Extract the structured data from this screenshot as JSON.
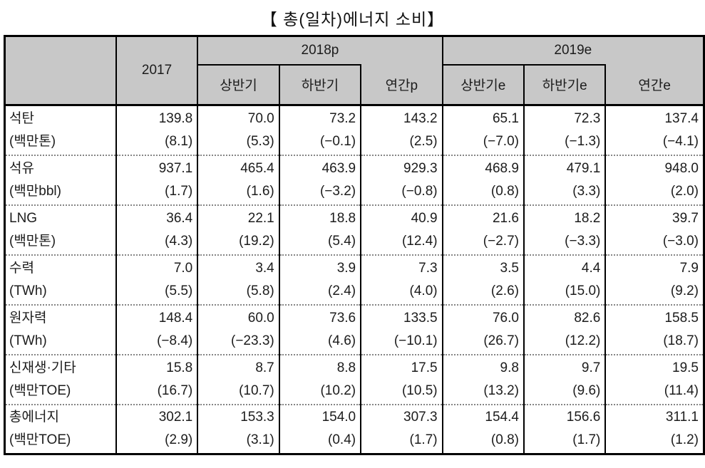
{
  "title": "【 총(일차)에너지 소비】",
  "colors": {
    "header_bg": "#c8c8c8",
    "border": "#000000",
    "row_separator": "#858585"
  },
  "table": {
    "corner": "",
    "col_2017": "2017",
    "groups": [
      {
        "label": "2018p",
        "sub": [
          "상반기",
          "하반기",
          "연간p"
        ]
      },
      {
        "label": "2019e",
        "sub": [
          "상반기e",
          "하반기e",
          "연간e"
        ]
      }
    ],
    "rows": [
      {
        "name": "석탄",
        "unit": "(백만톤)",
        "values": [
          "139.8",
          "70.0",
          "73.2",
          "143.2",
          "65.1",
          "72.3",
          "137.4"
        ],
        "growth": [
          "(8.1)",
          "(5.3)",
          "(−0.1)",
          "(2.5)",
          "(−7.0)",
          "(−1.3)",
          "(−4.1)"
        ]
      },
      {
        "name": "석유",
        "unit": "(백만bbl)",
        "values": [
          "937.1",
          "465.4",
          "463.9",
          "929.3",
          "468.9",
          "479.1",
          "948.0"
        ],
        "growth": [
          "(1.7)",
          "(1.6)",
          "(−3.2)",
          "(−0.8)",
          "(0.8)",
          "(3.3)",
          "(2.0)"
        ]
      },
      {
        "name": "LNG",
        "unit": "(백만톤)",
        "values": [
          "36.4",
          "22.1",
          "18.8",
          "40.9",
          "21.6",
          "18.2",
          "39.7"
        ],
        "growth": [
          "(4.3)",
          "(19.2)",
          "(5.4)",
          "(12.4)",
          "(−2.7)",
          "(−3.3)",
          "(−3.0)"
        ]
      },
      {
        "name": "수력",
        "unit": "(TWh)",
        "values": [
          "7.0",
          "3.4",
          "3.9",
          "7.3",
          "3.5",
          "4.4",
          "7.9"
        ],
        "growth": [
          "(5.5)",
          "(5.8)",
          "(2.4)",
          "(4.0)",
          "(2.6)",
          "(15.0)",
          "(9.2)"
        ]
      },
      {
        "name": "원자력",
        "unit": "(TWh)",
        "values": [
          "148.4",
          "60.0",
          "73.6",
          "133.5",
          "76.0",
          "82.6",
          "158.5"
        ],
        "growth": [
          "(−8.4)",
          "(−23.3)",
          "(4.6)",
          "(−10.1)",
          "(26.7)",
          "(12.2)",
          "(18.7)"
        ]
      },
      {
        "name": "신재생·기타",
        "unit": "(백만TOE)",
        "values": [
          "15.8",
          "8.7",
          "8.8",
          "17.5",
          "9.8",
          "9.7",
          "19.5"
        ],
        "growth": [
          "(16.7)",
          "(10.7)",
          "(10.2)",
          "(10.5)",
          "(13.2)",
          "(9.6)",
          "(11.4)"
        ]
      },
      {
        "name": "총에너지",
        "unit": "(백만TOE)",
        "values": [
          "302.1",
          "153.3",
          "154.0",
          "307.3",
          "154.4",
          "156.6",
          "311.1"
        ],
        "growth": [
          "(2.9)",
          "(3.1)",
          "(0.4)",
          "(1.7)",
          "(0.8)",
          "(1.7)",
          "(1.2)"
        ]
      }
    ]
  }
}
